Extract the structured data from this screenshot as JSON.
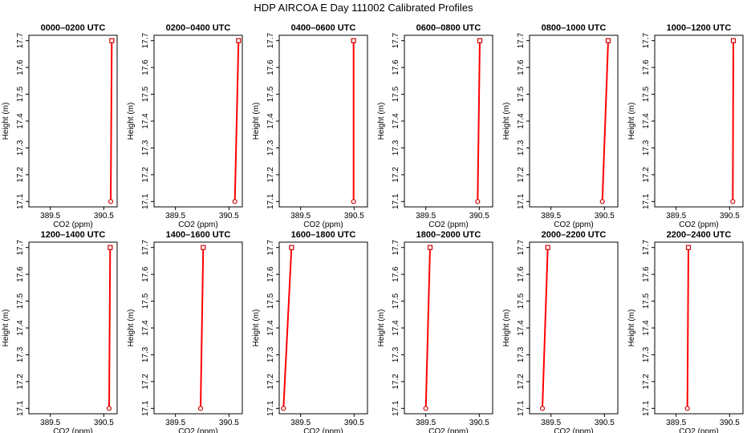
{
  "title": "HDP AIRCOA E  Day 111002  Calibrated Profiles",
  "chart_data": {
    "type": "line",
    "title": "HDP AIRCOA E  Day 111002  Calibrated Profiles",
    "xlabel": "CO2 (ppm)",
    "ylabel": "Height (m)",
    "xlim": [
      389.1,
      390.75
    ],
    "ylim": [
      17.08,
      17.72
    ],
    "xticks": [
      "389.5",
      "390.5"
    ],
    "yticks": [
      "17.1",
      "17.2",
      "17.3",
      "17.4",
      "17.5",
      "17.6",
      "17.7"
    ],
    "grid": false,
    "line_color": "#ff0000",
    "marker_color": "#cc0000",
    "panels": [
      {
        "title": "0000–0200 UTC",
        "x": [
          390.63,
          390.65
        ],
        "y": [
          17.1,
          17.7
        ]
      },
      {
        "title": "0200–0400 UTC",
        "x": [
          390.61,
          390.68
        ],
        "y": [
          17.1,
          17.7
        ]
      },
      {
        "title": "0400–0600 UTC",
        "x": [
          390.49,
          390.49
        ],
        "y": [
          17.1,
          17.7
        ]
      },
      {
        "title": "0600–0800 UTC",
        "x": [
          390.47,
          390.51
        ],
        "y": [
          17.1,
          17.7
        ]
      },
      {
        "title": "0800–1000 UTC",
        "x": [
          390.46,
          390.57
        ],
        "y": [
          17.1,
          17.7
        ]
      },
      {
        "title": "1000–1200 UTC",
        "x": [
          390.56,
          390.57
        ],
        "y": [
          17.1,
          17.7
        ]
      },
      {
        "title": "1200–1400 UTC",
        "x": [
          390.6,
          390.62
        ],
        "y": [
          17.1,
          17.7
        ]
      },
      {
        "title": "1400–1600 UTC",
        "x": [
          389.97,
          390.02
        ],
        "y": [
          17.1,
          17.7
        ]
      },
      {
        "title": "1600–1800 UTC",
        "x": [
          389.18,
          389.33
        ],
        "y": [
          17.1,
          17.7
        ]
      },
      {
        "title": "1800–2000 UTC",
        "x": [
          389.5,
          389.58
        ],
        "y": [
          17.1,
          17.7
        ]
      },
      {
        "title": "2000–2200 UTC",
        "x": [
          389.34,
          389.44
        ],
        "y": [
          17.1,
          17.7
        ]
      },
      {
        "title": "2200–2400 UTC",
        "x": [
          389.71,
          389.73
        ],
        "y": [
          17.1,
          17.7
        ]
      }
    ]
  }
}
